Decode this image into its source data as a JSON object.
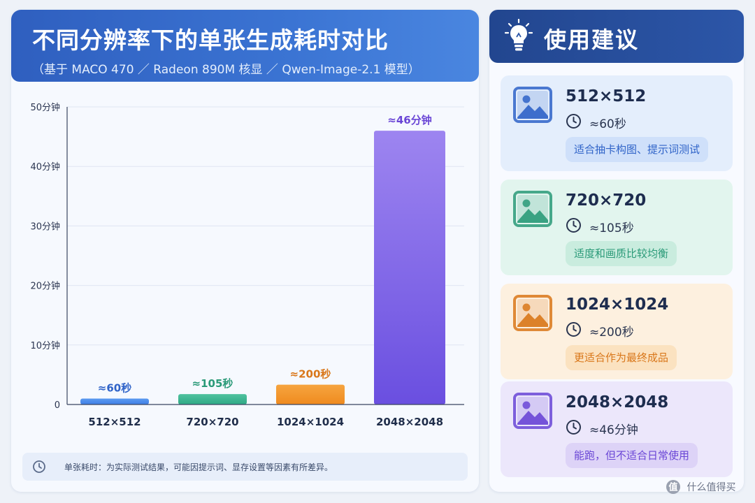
{
  "header": {
    "title": "不同分辨率下的单张生成耗时对比",
    "subtitle": "（基于 MACO 470 ／ Radeon 890M 核显 ／ Qwen-Image-2.1 模型）"
  },
  "chart_data": {
    "type": "bar",
    "title": "不同分辨率下的单张生成耗时对比",
    "subtitle": "（基于 MACO 470 ／ Radeon 890M 核显 ／ Qwen-Image-2.1 模型）",
    "categories": [
      "512×512",
      "720×720",
      "1024×1024",
      "2048×2048"
    ],
    "values_minutes": [
      1,
      1.75,
      3.33,
      46
    ],
    "value_labels": [
      "≈60秒",
      "≈105秒",
      "≈200秒",
      "≈46分钟"
    ],
    "ylim": [
      0,
      50
    ],
    "yticks": [
      0,
      10,
      20,
      30,
      40,
      50
    ],
    "ytick_labels": [
      "0",
      "10分钟",
      "20分钟",
      "30分钟",
      "40分钟",
      "50分钟"
    ],
    "grid": true,
    "colors": {
      "bars_top": [
        "#5b9af0",
        "#4fc29f",
        "#f6a540",
        "#9d85f0"
      ],
      "bars_bottom": [
        "#3f7fe6",
        "#2fa985",
        "#ef8a1e",
        "#6a4fe0"
      ],
      "labels": [
        "#2f63c8",
        "#2a9a78",
        "#d9771a",
        "#6a46d6"
      ]
    }
  },
  "footnote": {
    "text": "单张耗时：为实际测试结果，可能因提示词、显存设置等因素有所差异。"
  },
  "tips": {
    "title": "使用建议",
    "cards": [
      {
        "resolution": "512×512",
        "time": "≈60秒",
        "tag": "适合抽卡构图、提示词测试",
        "accent": "#2f63c8",
        "icon": "image-icon"
      },
      {
        "resolution": "720×720",
        "time": "≈105秒",
        "tag": "适度和画质比较均衡",
        "accent": "#2a9a78",
        "icon": "image-icon"
      },
      {
        "resolution": "1024×1024",
        "time": "≈200秒",
        "tag": "更适合作为最终成品",
        "accent": "#d9771a",
        "icon": "image-icon"
      },
      {
        "resolution": "2048×2048",
        "time": "≈46分钟",
        "tag": "能跑，但不适合日常使用",
        "accent": "#6a46d6",
        "icon": "image-icon"
      }
    ]
  },
  "watermark": {
    "text": "什么值得买"
  }
}
